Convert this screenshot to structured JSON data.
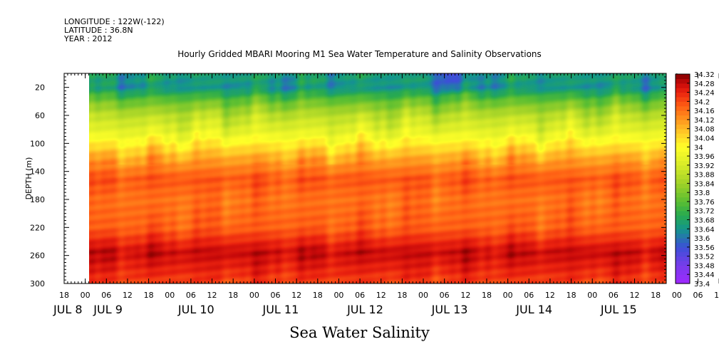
{
  "header": {
    "longitude": "LONGITUDE : 122W(-122)",
    "latitude": "LATITUDE : 36.8N",
    "year": "YEAR : 2012"
  },
  "chart_data": {
    "type": "heatmap",
    "title": "Hourly Gridded MBARI Mooring M1 Sea Water Temperature and Salinity Observations",
    "xlabel": "Sea Water Salinity",
    "ylabel": "DEPTH (m)",
    "x_start": "2012-07-08 18:00",
    "x_end": "2012-07-15 21:00",
    "data_start": "2012-07-09 01:00",
    "x_tick_hours": [
      "18",
      "00",
      "06",
      "12",
      "18",
      "00",
      "06",
      "12",
      "18",
      "00",
      "06",
      "12",
      "18",
      "00",
      "06",
      "12",
      "18",
      "00",
      "06",
      "12",
      "18",
      "00",
      "06",
      "12",
      "18",
      "00",
      "06",
      "12",
      "18",
      "00",
      "06",
      "12",
      "18",
      "00",
      "06",
      "12",
      "18"
    ],
    "x_day_labels": [
      "JUL 8",
      "JUL 9",
      "JUL 10",
      "JUL 11",
      "JUL 12",
      "JUL 13",
      "JUL 14",
      "JUL 15"
    ],
    "ylim": [
      300,
      0
    ],
    "y_ticks": [
      20,
      60,
      100,
      140,
      180,
      220,
      260,
      300
    ],
    "depth_profile": [
      {
        "depth": 5,
        "salinity": 33.66
      },
      {
        "depth": 20,
        "salinity": 33.64
      },
      {
        "depth": 40,
        "salinity": 33.78
      },
      {
        "depth": 60,
        "salinity": 33.88
      },
      {
        "depth": 80,
        "salinity": 33.94
      },
      {
        "depth": 100,
        "salinity": 34.02
      },
      {
        "depth": 120,
        "salinity": 34.1
      },
      {
        "depth": 150,
        "salinity": 34.19
      },
      {
        "depth": 180,
        "salinity": 34.16
      },
      {
        "depth": 220,
        "salinity": 34.18
      },
      {
        "depth": 255,
        "salinity": 34.28
      },
      {
        "depth": 275,
        "salinity": 34.25
      },
      {
        "depth": 300,
        "salinity": 34.21
      }
    ],
    "colorbar": {
      "min": 33.4,
      "max": 34.32,
      "labels": [
        "34.32",
        "34.28",
        "34.24",
        "34.2",
        "34.16",
        "34.12",
        "34.08",
        "34.04",
        "34",
        "33.96",
        "33.92",
        "33.88",
        "33.84",
        "33.8",
        "33.76",
        "33.72",
        "33.68",
        "33.64",
        "33.6",
        "33.56",
        "33.52",
        "33.48",
        "33.44",
        "33.4"
      ]
    }
  }
}
